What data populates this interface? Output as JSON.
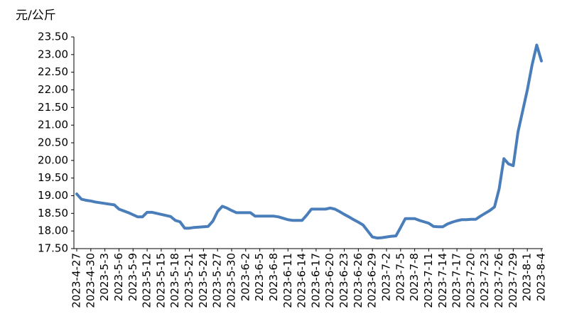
{
  "chart_data": {
    "type": "line",
    "y_label": "元/公斤",
    "categories": [
      "2023-4-27",
      null,
      null,
      "2023-4-30",
      null,
      null,
      "2023-5-3",
      null,
      null,
      "2023-5-6",
      null,
      null,
      "2023-5-9",
      null,
      null,
      "2023-5-12",
      null,
      null,
      "2023-5-15",
      null,
      null,
      "2023-5-18",
      null,
      null,
      "2023-5-21",
      null,
      null,
      "2023-5-24",
      null,
      null,
      "2023-5-27",
      null,
      null,
      "2023-5-30",
      null,
      null,
      "2023-6-2",
      null,
      null,
      "2023-6-5",
      null,
      null,
      "2023-6-8",
      null,
      null,
      "2023-6-11",
      null,
      null,
      "2023-6-14",
      null,
      null,
      "2023-6-17",
      null,
      null,
      "2023-6-20",
      null,
      null,
      "2023-6-23",
      null,
      null,
      "2023-6-26",
      null,
      null,
      "2023-6-29",
      null,
      null,
      "2023-7-2",
      null,
      null,
      "2023-7-5",
      null,
      null,
      "2023-7-8",
      null,
      null,
      "2023-7-11",
      null,
      null,
      "2023-7-14",
      null,
      null,
      "2023-7-17",
      null,
      null,
      "2023-7-20",
      null,
      null,
      "2023-7-23",
      null,
      null,
      "2023-7-26",
      null,
      null,
      "2023-7-29",
      null,
      null,
      "2023-8-1",
      null,
      null,
      "2023-8-4"
    ],
    "values": [
      19.05,
      18.9,
      18.87,
      18.85,
      18.82,
      18.8,
      18.78,
      18.76,
      18.74,
      18.62,
      18.57,
      18.52,
      18.46,
      18.4,
      18.4,
      18.53,
      18.53,
      18.5,
      18.47,
      18.44,
      18.41,
      18.3,
      18.26,
      18.08,
      18.08,
      18.1,
      18.11,
      18.12,
      18.13,
      18.28,
      18.55,
      18.7,
      18.65,
      18.58,
      18.52,
      18.52,
      18.52,
      18.52,
      18.42,
      18.42,
      18.42,
      18.42,
      18.42,
      18.4,
      18.36,
      18.32,
      18.3,
      18.3,
      18.3,
      18.45,
      18.62,
      18.62,
      18.62,
      18.62,
      18.65,
      18.62,
      18.55,
      18.47,
      18.4,
      18.32,
      18.25,
      18.17,
      18.0,
      17.83,
      17.8,
      17.81,
      17.83,
      17.85,
      17.86,
      18.1,
      18.35,
      18.35,
      18.35,
      18.3,
      18.26,
      18.22,
      18.13,
      18.12,
      18.12,
      18.2,
      18.25,
      18.29,
      18.32,
      18.32,
      18.33,
      18.33,
      18.42,
      18.5,
      18.58,
      18.68,
      19.2,
      20.05,
      19.9,
      19.85,
      20.8,
      21.4,
      22.0,
      22.7,
      23.27,
      22.82
    ],
    "color": "#4a7ebb",
    "ylim": [
      17.5,
      23.5
    ],
    "yticks": [
      {
        "value": 17.5,
        "label": "17.50"
      },
      {
        "value": 18,
        "label": "18.00"
      },
      {
        "value": 18.5,
        "label": "18.50"
      },
      {
        "value": 19,
        "label": "19.00"
      },
      {
        "value": 19.5,
        "label": "19.50"
      },
      {
        "value": 20,
        "label": "20.00"
      },
      {
        "value": 20.5,
        "label": "20.50"
      },
      {
        "value": 21,
        "label": "21.00"
      },
      {
        "value": 21.5,
        "label": "21.50"
      },
      {
        "value": 22,
        "label": "22.00"
      },
      {
        "value": 22.5,
        "label": "22.50"
      },
      {
        "value": 23,
        "label": "23.00"
      },
      {
        "value": 23.5,
        "label": "23.50"
      }
    ],
    "grid": false
  }
}
